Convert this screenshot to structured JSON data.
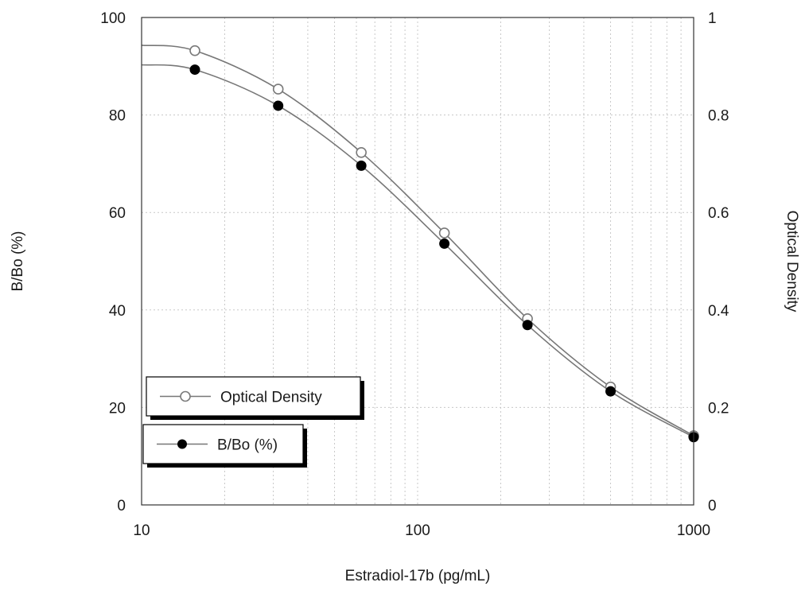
{
  "chart_data": {
    "type": "line",
    "xlabel": "Estradiol-17b (pg/mL)",
    "ylabel_left": "B/Bo (%)",
    "ylabel_right": "Optical Density",
    "x_scale": "log",
    "xlim": [
      10,
      1000
    ],
    "ylim_left": [
      0,
      100
    ],
    "ylim_right": [
      0,
      1
    ],
    "x_ticks": [
      "10",
      "100",
      "1000"
    ],
    "y_ticks_left": [
      "0",
      "20",
      "40",
      "60",
      "80",
      "100"
    ],
    "y_ticks_right": [
      "0",
      "0.2",
      "0.4",
      "0.6",
      "0.8",
      "1"
    ],
    "grid": true,
    "legend_position": "lower-left",
    "series": [
      {
        "name": "Optical Density",
        "axis": "right",
        "marker": "open-circle",
        "color": "#7a7a7a",
        "x": [
          15.6,
          31.25,
          62.5,
          125,
          250,
          500,
          1000
        ],
        "y": [
          0.932,
          0.853,
          0.723,
          0.558,
          0.382,
          0.242,
          0.142
        ],
        "curve_start": {
          "x": 10,
          "y": 0.943
        }
      },
      {
        "name": "B/Bo (%)",
        "axis": "left",
        "marker": "filled-circle",
        "color": "#000000",
        "x": [
          15.6,
          31.25,
          62.5,
          125,
          250,
          500,
          1000
        ],
        "y": [
          89.3,
          81.9,
          69.6,
          53.6,
          36.9,
          23.3,
          13.9
        ],
        "curve_start": {
          "x": 10,
          "y": 90.3
        }
      }
    ]
  }
}
